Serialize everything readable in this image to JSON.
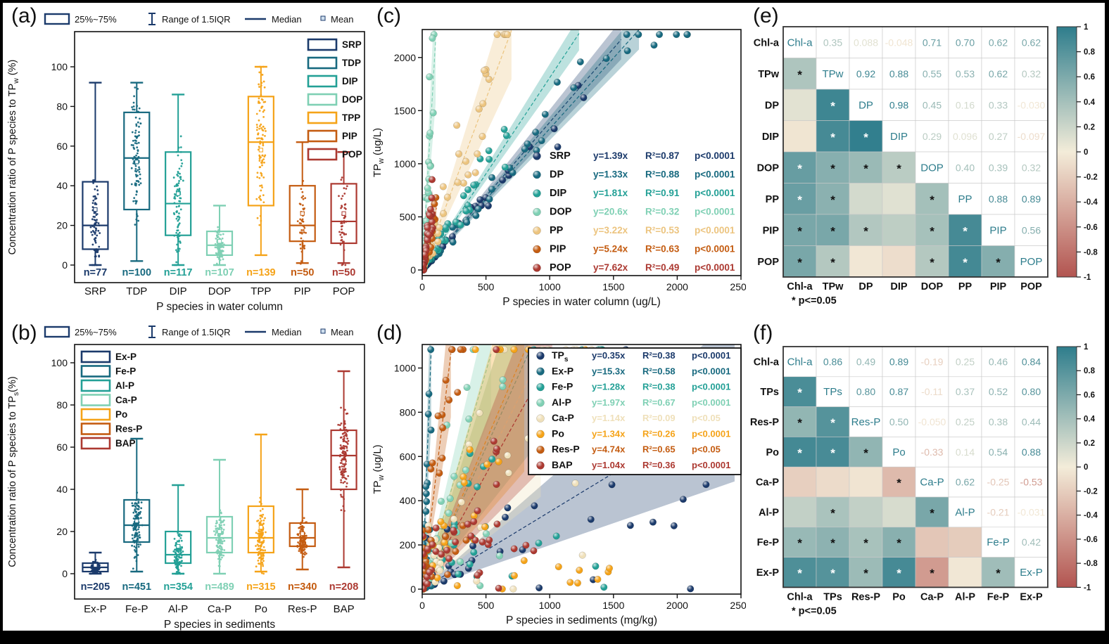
{
  "figure": {
    "background": "#ffffff",
    "frame_color": "#000000"
  },
  "palette": {
    "navy": "#1b3a6b",
    "darkteal": "#17697f",
    "teal": "#23a096",
    "mint": "#7fd0b4",
    "amber": "#f5a318",
    "tan": "#ecc47f",
    "cream": "#efe0ba",
    "burnt": "#c45c11",
    "red": "#ac3931",
    "heat_pos": "#2e7d8c",
    "heat_zero": "#f3ecd9",
    "heat_neg": "#b25450"
  },
  "chart_data": [
    {
      "id": "a",
      "type": "box",
      "panel_label": "(a)",
      "stat_legend": [
        "25%~75%",
        "Range of 1.5IQR",
        "Median",
        "Mean"
      ],
      "ylabel": "Concentration ratio of P species to TP_w (%)",
      "xlabel": "P species in water column",
      "yticks": [
        0,
        20,
        40,
        60,
        80,
        100
      ],
      "ylim": [
        0,
        100
      ],
      "categories": [
        "SRP",
        "TDP",
        "DIP",
        "DOP",
        "TPP",
        "PIP",
        "POP"
      ],
      "colors": [
        "#1b3a6b",
        "#17697f",
        "#23a096",
        "#7fd0b4",
        "#f5a318",
        "#c45c11",
        "#ac3931"
      ],
      "n_labels": [
        "n=77",
        "n=100",
        "n=117",
        "n=107",
        "n=139",
        "n=50",
        "n=50"
      ],
      "boxes": [
        {
          "low": 0,
          "q1": 8,
          "med": 20,
          "q3": 42,
          "high": 92,
          "mean": 28
        },
        {
          "low": 2,
          "q1": 28,
          "med": 54,
          "q3": 77,
          "high": 92,
          "mean": 52
        },
        {
          "low": 0,
          "q1": 15,
          "med": 31,
          "q3": 57,
          "high": 86,
          "mean": 36
        },
        {
          "low": 0,
          "q1": 5,
          "med": 10,
          "q3": 17,
          "high": 30,
          "mean": 12
        },
        {
          "low": 5,
          "q1": 30,
          "med": 62,
          "q3": 85,
          "high": 100,
          "mean": 58
        },
        {
          "low": 1,
          "q1": 12,
          "med": 20,
          "q3": 40,
          "high": 62,
          "mean": 26
        },
        {
          "low": 1,
          "q1": 11,
          "med": 22,
          "q3": 41,
          "high": 57,
          "mean": 26
        }
      ],
      "species_legend_side": "right"
    },
    {
      "id": "b",
      "type": "box",
      "panel_label": "(b)",
      "stat_legend": [
        "25%~75%",
        "Range of 1.5IQR",
        "Median",
        "Mean"
      ],
      "ylabel": "Concentration ratio of P species to TP_s(%)",
      "xlabel": "P species in sediments",
      "yticks": [
        0,
        20,
        40,
        60,
        80,
        100
      ],
      "ylim": [
        0,
        100
      ],
      "categories": [
        "Ex-P",
        "Fe-P",
        "Al-P",
        "Ca-P",
        "Po",
        "Res-P",
        "BAP"
      ],
      "colors": [
        "#1b3a6b",
        "#17697f",
        "#23a096",
        "#7fd0b4",
        "#f5a318",
        "#c45c11",
        "#ac3931"
      ],
      "n_labels": [
        "n=205",
        "n=451",
        "n=354",
        "n=489",
        "n=315",
        "n=340",
        "n=208"
      ],
      "boxes": [
        {
          "low": 0,
          "q1": 1,
          "med": 3,
          "q3": 5,
          "high": 10,
          "mean": 4
        },
        {
          "low": 1,
          "q1": 15,
          "med": 23,
          "q3": 35,
          "high": 64,
          "mean": 25
        },
        {
          "low": 0,
          "q1": 5,
          "med": 9,
          "q3": 20,
          "high": 42,
          "mean": 13
        },
        {
          "low": 0,
          "q1": 10,
          "med": 17,
          "q3": 27,
          "high": 54,
          "mean": 20
        },
        {
          "low": 1,
          "q1": 10,
          "med": 17,
          "q3": 32,
          "high": 66,
          "mean": 22
        },
        {
          "low": 2,
          "q1": 13,
          "med": 17,
          "q3": 24,
          "high": 40,
          "mean": 19
        },
        {
          "low": 3,
          "q1": 40,
          "med": 56,
          "q3": 68,
          "high": 96,
          "mean": 53
        }
      ],
      "species_legend_side": "left"
    },
    {
      "id": "c",
      "type": "scatter",
      "panel_label": "(c)",
      "ylabel": "TP_w (ug/L)",
      "xlabel": "P species in water column (ug/L)",
      "xticks": [
        0,
        500,
        1000,
        1500,
        2000,
        2500
      ],
      "yticks": [
        0,
        500,
        1000,
        1500,
        2000
      ],
      "xlim": [
        0,
        2500
      ],
      "ylim": [
        0,
        2250
      ],
      "legend_framed": false,
      "series": [
        {
          "name": "SRP",
          "eq": "y=1.39x",
          "slope": 1.39,
          "r2": "R²=0.87",
          "r2v": 0.87,
          "p": "p<0.0001",
          "color": "#1b3a6b",
          "x_spread": 1350,
          "sigma": 0.3,
          "line_xmax": 1560
        },
        {
          "name": "DP",
          "eq": "y=1.33x",
          "slope": 1.33,
          "r2": "R²=0.88",
          "r2v": 0.88,
          "p": "p<0.0001",
          "color": "#17697f",
          "x_spread": 2080,
          "sigma": 0.28,
          "line_xmax": 1700
        },
        {
          "name": "DIP",
          "eq": "y=1.81x",
          "slope": 1.81,
          "r2": "R²=0.91",
          "r2v": 0.91,
          "p": "p<0.0001",
          "color": "#23a096",
          "x_spread": 700,
          "sigma": 0.4,
          "line_xmax": 1230
        },
        {
          "name": "DOP",
          "eq": "y=20.6x",
          "slope": 20.6,
          "r2": "R²=0.32",
          "r2v": 0.32,
          "p": "p<0.0001",
          "color": "#7fd0b4",
          "x_spread": 95,
          "sigma": 0.8,
          "line_xmax": 105
        },
        {
          "name": "PP",
          "eq": "y=3.22x",
          "slope": 3.22,
          "r2": "R²=0.53",
          "r2v": 0.53,
          "p": "p<0.0001",
          "color": "#ecc47f",
          "x_spread": 700,
          "sigma": 0.9,
          "line_xmax": 700
        },
        {
          "name": "PIP",
          "eq": "y=5.24x",
          "slope": 5.24,
          "r2": "R²=0.63",
          "r2v": 0.63,
          "p": "p<0.0001",
          "color": "#c45c11",
          "x_spread": 110,
          "sigma": 0.7,
          "line_xmax": 112
        },
        {
          "name": "POP",
          "eq": "y=7.62x",
          "slope": 7.62,
          "r2": "R²=0.49",
          "r2v": 0.49,
          "p": "p<0.0001",
          "color": "#ac3931",
          "x_spread": 85,
          "sigma": 0.7,
          "line_xmax": 82
        }
      ]
    },
    {
      "id": "d",
      "type": "scatter",
      "panel_label": "(d)",
      "ylabel": "TP_w (ug/L)",
      "xlabel": "P species in sediments (mg/kg)",
      "xticks": [
        0,
        500,
        1000,
        1500,
        2000,
        2500
      ],
      "yticks": [
        0,
        200,
        400,
        600,
        800,
        1000
      ],
      "xlim": [
        0,
        2500
      ],
      "ylim": [
        0,
        1100
      ],
      "legend_framed": true,
      "series": [
        {
          "name": "TP_s",
          "eq": "y=0.35x",
          "slope": 0.35,
          "r2": "R²=0.38",
          "r2v": 0.38,
          "p": "p<0.0001",
          "color": "#1b3a6b",
          "x_spread": 2300,
          "sigma": 1.2,
          "line_xmax": 2450
        },
        {
          "name": "Ex-P",
          "eq": "y=15.3x",
          "slope": 15.3,
          "r2": "R²=0.58",
          "r2v": 0.58,
          "p": "p<0.0001",
          "color": "#17697f",
          "x_spread": 75,
          "sigma": 1.0,
          "line_xmax": 70
        },
        {
          "name": "Fe-P",
          "eq": "y=1.28x",
          "slope": 1.28,
          "r2": "R²=0.38",
          "r2v": 0.38,
          "p": "p<0.0001",
          "color": "#23a096",
          "x_spread": 1500,
          "sigma": 1.4,
          "line_xmax": 830
        },
        {
          "name": "Al-P",
          "eq": "y=1.97x",
          "slope": 1.97,
          "r2": "R²=0.67",
          "r2v": 0.67,
          "p": "p<0.0001",
          "color": "#7fd0b4",
          "x_spread": 700,
          "sigma": 1.2,
          "line_xmax": 540
        },
        {
          "name": "Ca-P",
          "eq": "y=1.14x",
          "slope": 1.14,
          "r2": "R²=0.09",
          "r2v": 0.09,
          "p": "p<0.05",
          "color": "#efe0ba",
          "x_spread": 1400,
          "sigma": 1.5,
          "line_xmax": 930
        },
        {
          "name": "Po",
          "eq": "y=1.34x",
          "slope": 1.34,
          "r2": "R²=0.26",
          "r2v": 0.26,
          "p": "p<0.0001",
          "color": "#f5a318",
          "x_spread": 1500,
          "sigma": 1.4,
          "line_xmax": 800
        },
        {
          "name": "Res-P",
          "eq": "y=4.74x",
          "slope": 4.74,
          "r2": "R²=0.65",
          "r2v": 0.65,
          "p": "p<0.05",
          "color": "#c45c11",
          "x_spread": 350,
          "sigma": 1.2,
          "line_xmax": 225
        },
        {
          "name": "BAP",
          "eq": "y=1.04x",
          "slope": 1.04,
          "r2": "R²=0.36",
          "r2v": 0.36,
          "p": "p<0.0001",
          "color": "#ac3931",
          "x_spread": 950,
          "sigma": 1.3,
          "line_xmax": 1020
        }
      ]
    },
    {
      "id": "e",
      "type": "heatmap",
      "panel_label": "(e)",
      "labels": [
        "Chl-a",
        "TPw",
        "DP",
        "DIP",
        "DOP",
        "PP",
        "PIP",
        "POP"
      ],
      "footnote": "* p<=0.05",
      "colorbar_ticks": [
        "1",
        "0.8",
        "0.6",
        "0.4",
        "0.2",
        "0",
        "-0.2",
        "-0.4",
        "-0.6",
        "-0.8",
        "-1"
      ],
      "matrix": [
        [
          1,
          0.35,
          0.088,
          -0.048,
          0.71,
          0.7,
          0.62,
          0.62
        ],
        [
          0.35,
          1,
          0.92,
          0.88,
          0.55,
          0.53,
          0.62,
          0.32
        ],
        [
          0.088,
          0.92,
          1,
          0.98,
          0.45,
          0.16,
          0.33,
          -0.03
        ],
        [
          -0.048,
          0.88,
          0.98,
          1,
          0.29,
          0.096,
          0.27,
          -0.097
        ],
        [
          0.71,
          0.55,
          0.45,
          0.29,
          1,
          0.4,
          0.39,
          0.32
        ],
        [
          0.7,
          0.53,
          0.16,
          0.096,
          0.4,
          1,
          0.88,
          0.89
        ],
        [
          0.62,
          0.62,
          0.33,
          0.27,
          0.39,
          0.88,
          1,
          0.56
        ],
        [
          0.62,
          0.32,
          -0.03,
          -0.097,
          0.32,
          0.89,
          0.56,
          1
        ]
      ],
      "display_upper": [
        [
          "0.35",
          "0.088",
          "-0.048",
          "0.71",
          "0.70",
          "0.62",
          "0.62"
        ],
        [
          "0.92",
          "0.88",
          "0.55",
          "0.53",
          "0.62",
          "0.32"
        ],
        [
          "0.98",
          "0.45",
          "0.16",
          "0.33",
          "-0.030"
        ],
        [
          "0.29",
          "0.096",
          "0.27",
          "-0.097"
        ],
        [
          "0.40",
          "0.39",
          "0.32"
        ],
        [
          "0.88",
          "0.89"
        ],
        [
          "0.56"
        ]
      ],
      "sig_lower": [
        [],
        [
          true
        ],
        [
          false,
          true
        ],
        [
          false,
          true,
          true
        ],
        [
          true,
          true,
          true,
          true
        ],
        [
          true,
          true,
          false,
          false,
          true
        ],
        [
          true,
          true,
          true,
          false,
          true,
          true
        ],
        [
          true,
          true,
          false,
          false,
          true,
          true,
          true
        ]
      ]
    },
    {
      "id": "f",
      "type": "heatmap",
      "panel_label": "(f)",
      "labels": [
        "Chl-a",
        "TPs",
        "Res-P",
        "Po",
        "Ca-P",
        "Al-P",
        "Fe-P",
        "Ex-P"
      ],
      "footnote": "* p<=0.05",
      "colorbar_ticks": [
        "1",
        "0.8",
        "0.6",
        "0.4",
        "0.2",
        "0",
        "-0.2",
        "-0.4",
        "-0.6",
        "-0.8",
        "-1"
      ],
      "matrix": [
        [
          1,
          0.86,
          0.49,
          0.89,
          -0.19,
          0.25,
          0.46,
          0.84
        ],
        [
          0.86,
          1,
          0.8,
          0.87,
          -0.11,
          0.37,
          0.52,
          0.8
        ],
        [
          0.49,
          0.8,
          1,
          0.5,
          -0.05,
          0.25,
          0.38,
          0.44
        ],
        [
          0.89,
          0.87,
          0.5,
          1,
          -0.33,
          0.14,
          0.54,
          0.88
        ],
        [
          -0.19,
          -0.11,
          -0.05,
          -0.33,
          1,
          0.62,
          -0.25,
          -0.53
        ],
        [
          0.25,
          0.37,
          0.25,
          0.14,
          0.62,
          1,
          -0.21,
          -0.031
        ],
        [
          0.46,
          0.52,
          0.38,
          0.54,
          -0.25,
          -0.21,
          1,
          0.42
        ],
        [
          0.84,
          0.8,
          0.44,
          0.88,
          -0.53,
          -0.031,
          0.42,
          1
        ]
      ],
      "display_upper": [
        [
          "0.86",
          "0.49",
          "0.89",
          "-0.19",
          "0.25",
          "0.46",
          "0.84"
        ],
        [
          "0.80",
          "0.87",
          "-0.11",
          "0.37",
          "0.52",
          "0.80"
        ],
        [
          "0.50",
          "-0.050",
          "0.25",
          "0.38",
          "0.44"
        ],
        [
          "-0.33",
          "0.14",
          "0.54",
          "0.88"
        ],
        [
          "0.62",
          "-0.25",
          "-0.53"
        ],
        [
          "-0.21",
          "-0.031"
        ],
        [
          "0.42"
        ]
      ],
      "sig_lower": [
        [],
        [
          true
        ],
        [
          true,
          true
        ],
        [
          true,
          true,
          true
        ],
        [
          false,
          false,
          false,
          true
        ],
        [
          false,
          true,
          false,
          false,
          true
        ],
        [
          true,
          true,
          true,
          true,
          false,
          false
        ],
        [
          true,
          true,
          true,
          true,
          true,
          false,
          true
        ]
      ]
    }
  ]
}
